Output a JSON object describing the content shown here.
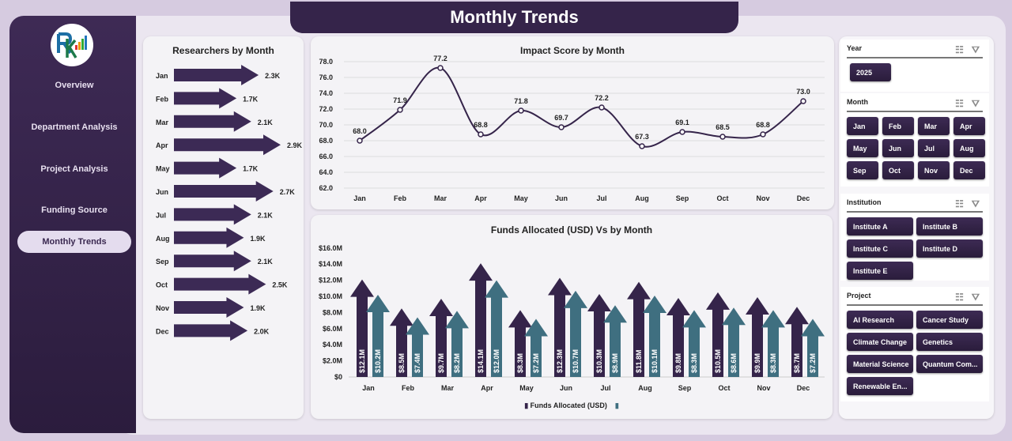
{
  "title": "Monthly Trends",
  "sidebar": {
    "items": [
      {
        "label": "Overview"
      },
      {
        "label": "Department Analysis"
      },
      {
        "label": "Project Analysis"
      },
      {
        "label": "Funding Source"
      },
      {
        "label": "Monthly Trends",
        "active": true
      }
    ]
  },
  "colors": {
    "primary": "#35244a",
    "secondary": "#3f6f80",
    "page": "#d6cbe0"
  },
  "researchers": {
    "title": "Researchers by Month",
    "months": [
      "Jan",
      "Feb",
      "Mar",
      "Apr",
      "May",
      "Jun",
      "Jul",
      "Aug",
      "Sep",
      "Oct",
      "Nov",
      "Dec"
    ],
    "values": [
      2.3,
      1.7,
      2.1,
      2.9,
      1.7,
      2.7,
      2.1,
      1.9,
      2.1,
      2.5,
      1.9,
      2.0
    ],
    "labels": [
      "2.3K",
      "1.7K",
      "2.1K",
      "2.9K",
      "1.7K",
      "2.7K",
      "2.1K",
      "1.9K",
      "2.1K",
      "2.5K",
      "1.9K",
      "2.0K"
    ]
  },
  "chart_data": [
    {
      "type": "line",
      "title": "Impact Score by Month",
      "categories": [
        "Jan",
        "Feb",
        "Mar",
        "Apr",
        "May",
        "Jun",
        "Jul",
        "Aug",
        "Sep",
        "Oct",
        "Nov",
        "Dec"
      ],
      "values": [
        68.0,
        71.9,
        77.2,
        68.8,
        71.8,
        69.7,
        72.2,
        67.3,
        69.1,
        68.5,
        68.8,
        73.0
      ],
      "ylim": [
        62,
        78
      ],
      "yticks": [
        "62.0",
        "64.0",
        "66.0",
        "68.0",
        "70.0",
        "72.0",
        "74.0",
        "76.0",
        "78.0"
      ],
      "grid": true
    },
    {
      "type": "bar",
      "title": "Funds Allocated (USD) Vs  by Month",
      "categories": [
        "Jan",
        "Feb",
        "Mar",
        "Apr",
        "May",
        "Jun",
        "Jul",
        "Aug",
        "Sep",
        "Oct",
        "Nov",
        "Dec"
      ],
      "series": [
        {
          "name": "Funds Allocated (USD)",
          "values": [
            12.1,
            8.5,
            9.7,
            14.1,
            8.3,
            12.3,
            10.3,
            11.8,
            9.8,
            10.5,
            9.9,
            8.7
          ],
          "color": "#35244a"
        },
        {
          "name": "",
          "values": [
            10.2,
            7.4,
            8.2,
            12.0,
            7.2,
            10.7,
            8.9,
            10.1,
            8.3,
            8.6,
            8.3,
            7.2
          ],
          "color": "#3f6f80"
        }
      ],
      "ylim": [
        0,
        16
      ],
      "yticks": [
        "$0",
        "$2.0M",
        "$4.0M",
        "$6.0M",
        "$8.0M",
        "$10.0M",
        "$12.0M",
        "$14.0M",
        "$16.0M"
      ],
      "legend": "bottom"
    }
  ],
  "slicers": [
    {
      "title": "Year",
      "items": [
        "2025"
      ]
    },
    {
      "title": "Month",
      "items": [
        "Jan",
        "Feb",
        "Mar",
        "Apr",
        "May",
        "Jun",
        "Jul",
        "Aug",
        "Sep",
        "Oct",
        "Nov",
        "Dec"
      ]
    },
    {
      "title": "Institution",
      "items": [
        "Institute A",
        "Institute B",
        "Institute C",
        "Institute D",
        "Institute E"
      ]
    },
    {
      "title": "Project",
      "items": [
        "AI Research",
        "Cancer Study",
        "Climate Change",
        "Genetics",
        "Material Science",
        "Quantum Com...",
        "Renewable En..."
      ]
    }
  ]
}
